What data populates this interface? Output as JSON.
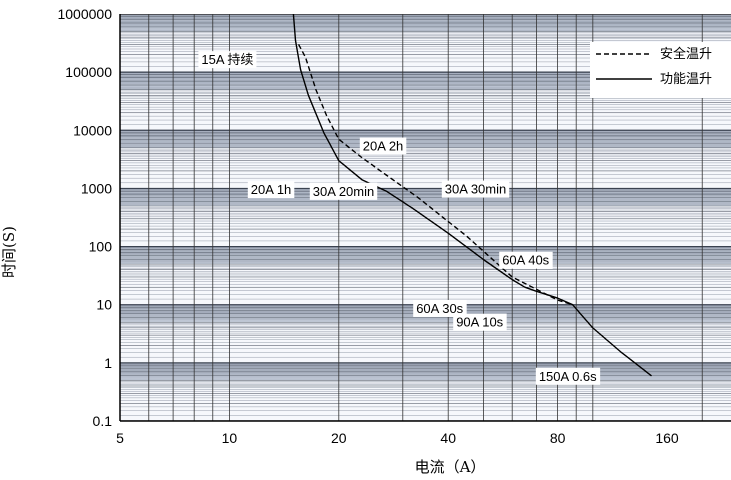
{
  "chart_data": {
    "type": "line",
    "xlabel": "电流（A）",
    "ylabel": "时间(S)",
    "xscale": "log",
    "yscale": "log",
    "xlim": [
      5,
      240
    ],
    "ylim": [
      0.1,
      1000000
    ],
    "x_ticks": [
      {
        "value": 5,
        "label": "5"
      },
      {
        "value": 10,
        "label": "10"
      },
      {
        "value": 20,
        "label": "20"
      },
      {
        "value": 40,
        "label": "40"
      },
      {
        "value": 80,
        "label": "80"
      },
      {
        "value": 160,
        "label": "160"
      }
    ],
    "y_ticks": [
      {
        "value": 1000000,
        "label": "1000000"
      },
      {
        "value": 100000,
        "label": "100000"
      },
      {
        "value": 10000,
        "label": "10000"
      },
      {
        "value": 1000,
        "label": "1000"
      },
      {
        "value": 100,
        "label": "100"
      },
      {
        "value": 10,
        "label": "10"
      },
      {
        "value": 1,
        "label": "1"
      },
      {
        "value": 0.1,
        "label": "0.1"
      }
    ],
    "legend": {
      "position": "top-right"
    },
    "series": [
      {
        "name": "安全温升",
        "style": "dashed",
        "color": "#000000",
        "points": [
          [
            15.5,
            300000
          ],
          [
            16.2,
            180000
          ],
          [
            17.3,
            50000
          ],
          [
            18.5,
            18000
          ],
          [
            20,
            7000
          ],
          [
            23,
            3500
          ],
          [
            27,
            1700
          ],
          [
            33,
            700
          ],
          [
            45,
            150
          ],
          [
            60,
            30
          ],
          [
            80,
            12
          ],
          [
            88,
            10
          ]
        ]
      },
      {
        "name": "功能温升",
        "style": "solid",
        "color": "#000000",
        "points": [
          [
            15,
            1000000
          ],
          [
            15.2,
            350000
          ],
          [
            15.7,
            110000
          ],
          [
            16.5,
            40000
          ],
          [
            18.2,
            9000
          ],
          [
            20,
            3000
          ],
          [
            23.2,
            1400
          ],
          [
            27,
            900
          ],
          [
            32,
            450
          ],
          [
            40,
            170
          ],
          [
            50,
            60
          ],
          [
            60,
            27
          ],
          [
            65,
            20
          ],
          [
            70,
            17
          ],
          [
            80,
            13
          ],
          [
            88,
            10
          ],
          [
            100,
            4
          ],
          [
            120,
            1.5
          ],
          [
            145,
            0.6
          ]
        ]
      }
    ],
    "annotations": [
      {
        "text": "15A 持续",
        "x": 15,
        "y": 100000
      },
      {
        "text": "20A 2h",
        "x": 20,
        "y": 7200
      },
      {
        "text": "20A 1h",
        "x": 20,
        "y": 3600
      },
      {
        "text": "30A 30min",
        "x": 30,
        "y": 1800
      },
      {
        "text": "30A 20min",
        "x": 30,
        "y": 1200
      },
      {
        "text": "60A 40s",
        "x": 60,
        "y": 40
      },
      {
        "text": "60A 30s",
        "x": 60,
        "y": 30
      },
      {
        "text": "90A 10s",
        "x": 90,
        "y": 10
      },
      {
        "text": "150A 0.6s",
        "x": 150,
        "y": 0.6
      }
    ],
    "colors": {
      "grid_band_dark": "#d6deea",
      "grid_band_light": "#f6f8fc",
      "grid_line": "#2a2a2a",
      "background": "#ffffff"
    }
  }
}
